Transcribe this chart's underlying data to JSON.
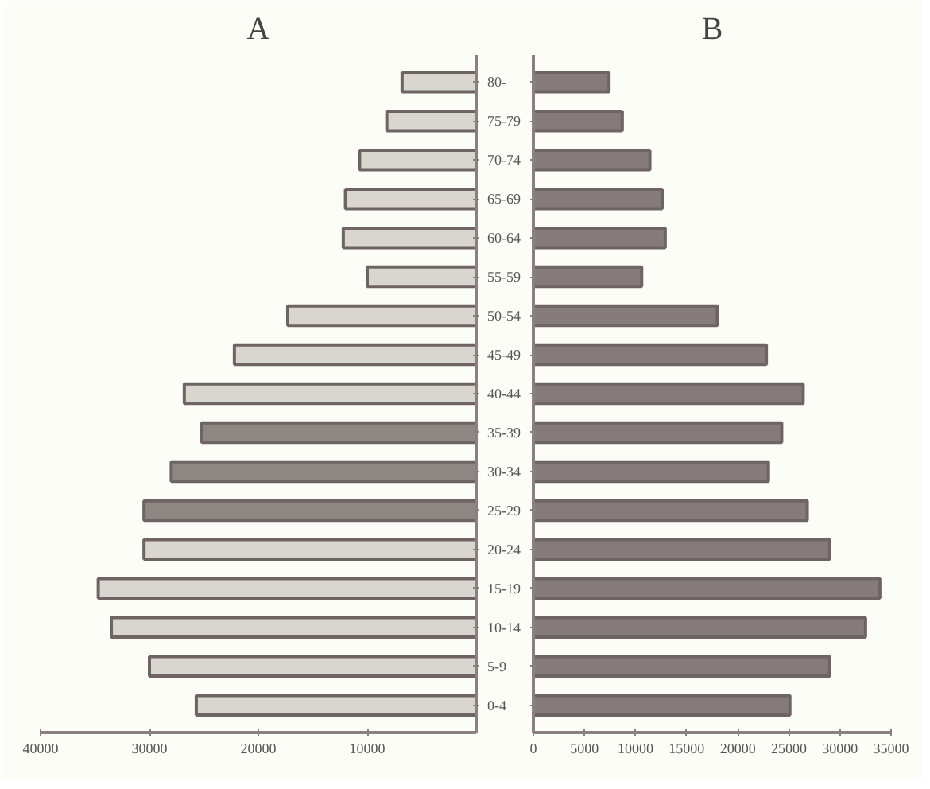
{
  "chart_data": [
    {
      "type": "bar",
      "orientation": "horizontal",
      "title": "A",
      "categories": [
        "80-",
        "75-79",
        "70-74",
        "65-69",
        "60-64",
        "55-59",
        "50-54",
        "45-49",
        "40-44",
        "35-39",
        "30-34",
        "25-29",
        "20-24",
        "15-19",
        "10-14",
        "5-9",
        "0-4"
      ],
      "values": [
        6800,
        8200,
        10700,
        12000,
        12200,
        10000,
        17300,
        22200,
        26800,
        25200,
        28000,
        30500,
        30500,
        34700,
        33500,
        30000,
        25700
      ],
      "colors": [
        "#d9d5cf",
        "#d9d5cf",
        "#d9d5cf",
        "#d9d5cf",
        "#d9d5cf",
        "#d9d5cf",
        "#d9d5cf",
        "#d9d5cf",
        "#d9d5cf",
        "#8e8683",
        "#8e8683",
        "#8e8683",
        "#d9d5cf",
        "#d9d5cf",
        "#d9d5cf",
        "#d9d5cf",
        "#d9d5cf"
      ],
      "xlim": [
        40000,
        0
      ],
      "xticks": [
        40000,
        30000,
        20000,
        10000
      ],
      "grid": false
    },
    {
      "type": "bar",
      "orientation": "horizontal",
      "title": "B",
      "categories": [
        null,
        null,
        null,
        null,
        null,
        null,
        null,
        null,
        null,
        null,
        null,
        null,
        null,
        null,
        null,
        null,
        null
      ],
      "values": [
        7400,
        8700,
        11400,
        12600,
        12900,
        10600,
        18000,
        22800,
        26400,
        24300,
        23000,
        26800,
        29000,
        33900,
        32500,
        29000,
        25100
      ],
      "color": "#857b7a",
      "xlim": [
        0,
        35000
      ],
      "xticks": [
        0,
        5000,
        10000,
        15000,
        20000,
        25000,
        30000,
        35000
      ],
      "grid": false
    }
  ]
}
